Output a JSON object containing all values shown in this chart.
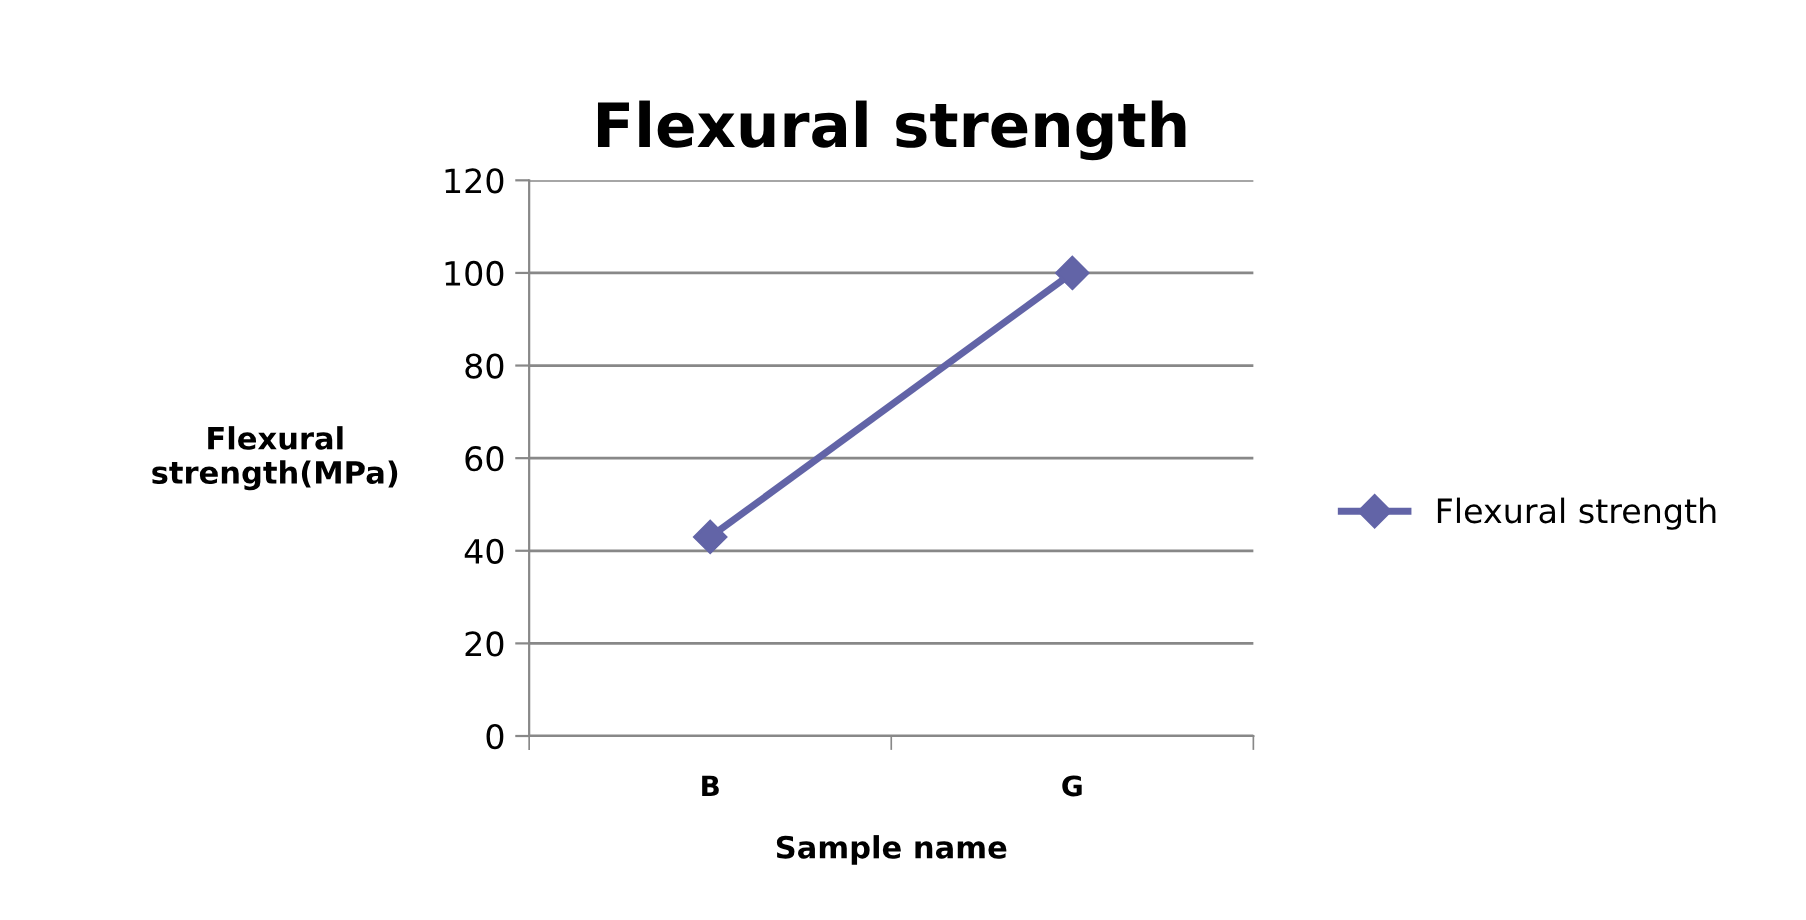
{
  "chart_data": {
    "type": "line",
    "title": "Flexural strength",
    "xlabel": "Sample name",
    "ylabel": "Flexural\nstrength(MPa)",
    "categories": [
      "B",
      "G"
    ],
    "series": [
      {
        "name": "Flexural strength",
        "color": "#6264a7",
        "values": [
          43,
          100
        ]
      }
    ],
    "ylim": [
      0,
      120
    ],
    "yticks": [
      0,
      20,
      40,
      60,
      80,
      100,
      120
    ],
    "grid": "y",
    "legend": "right",
    "marker": "diamond",
    "line_style": "solid"
  }
}
